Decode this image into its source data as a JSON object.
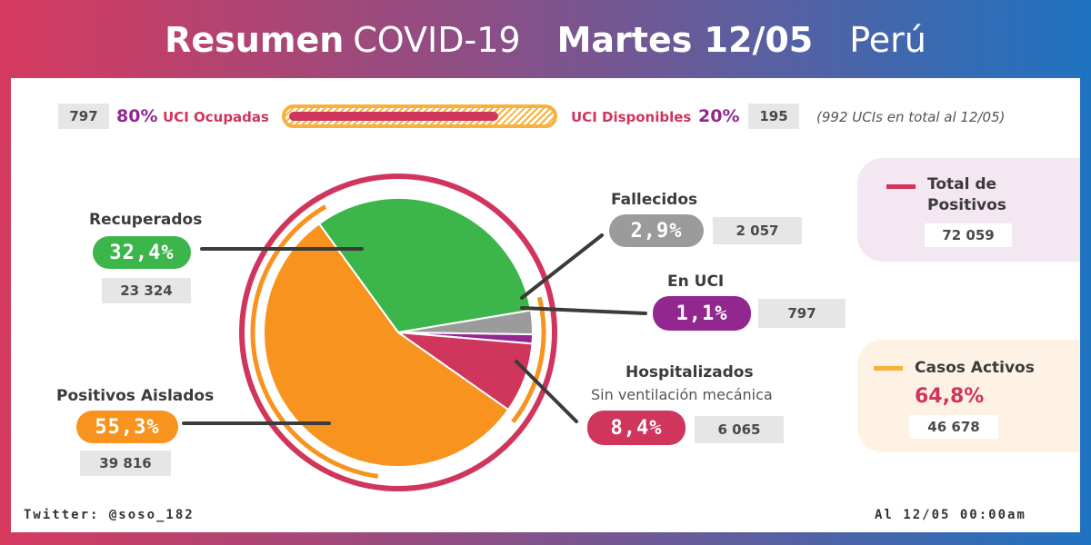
{
  "header": {
    "title_bold": "Resumen",
    "title_light": "COVID-19",
    "date_bold": "Martes 12/05",
    "country": "Perú"
  },
  "icu_bar": {
    "occupied_count": "797",
    "occupied_pct": "80%",
    "occupied_label": "UCI Ocupadas",
    "available_label": "UCI Disponibles",
    "available_pct": "20%",
    "available_count": "195",
    "total_note": "(992 UCIs en total al 12/05)",
    "fill_fraction": 0.8
  },
  "colors": {
    "recuperados": "#3cb54a",
    "aislados": "#f7931e",
    "hospitalizados": "#d0355c",
    "uci": "#92278f",
    "fallecidos": "#9b9b9b",
    "ring": "#d0355c"
  },
  "labels": {
    "recuperados": {
      "title": "Recuperados",
      "pct": "32,4%",
      "count": "23 324"
    },
    "aislados": {
      "title": "Positivos Aislados",
      "pct": "55,3%",
      "count": "39 816"
    },
    "fallecidos": {
      "title": "Fallecidos",
      "pct": "2,9%",
      "count": "2 057"
    },
    "uci": {
      "title": "En UCI",
      "pct": "1,1%",
      "count": "797"
    },
    "hospitalizados": {
      "title": "Hospitalizados",
      "subtitle": "Sin ventilación mecánica",
      "pct": "8,4%",
      "count": "6 065"
    }
  },
  "side": {
    "total_title_1": "Total de",
    "total_title_2": "Positivos",
    "total_count": "72 059",
    "activos_title": "Casos Activos",
    "activos_pct": "64,8%",
    "activos_count": "46 678"
  },
  "footer": {
    "twitter": "Twitter: @soso_182",
    "timestamp": "Al 12/05 00:00am"
  },
  "chart_data": {
    "type": "pie",
    "categories": [
      "Recuperados",
      "Fallecidos",
      "En UCI",
      "Hospitalizados",
      "Positivos Aislados"
    ],
    "values": [
      23324,
      2057,
      797,
      6065,
      39816
    ],
    "percentages": [
      32.4,
      2.9,
      1.1,
      8.4,
      55.3
    ],
    "title": "Resumen COVID-19 Martes 12/05 Perú"
  }
}
